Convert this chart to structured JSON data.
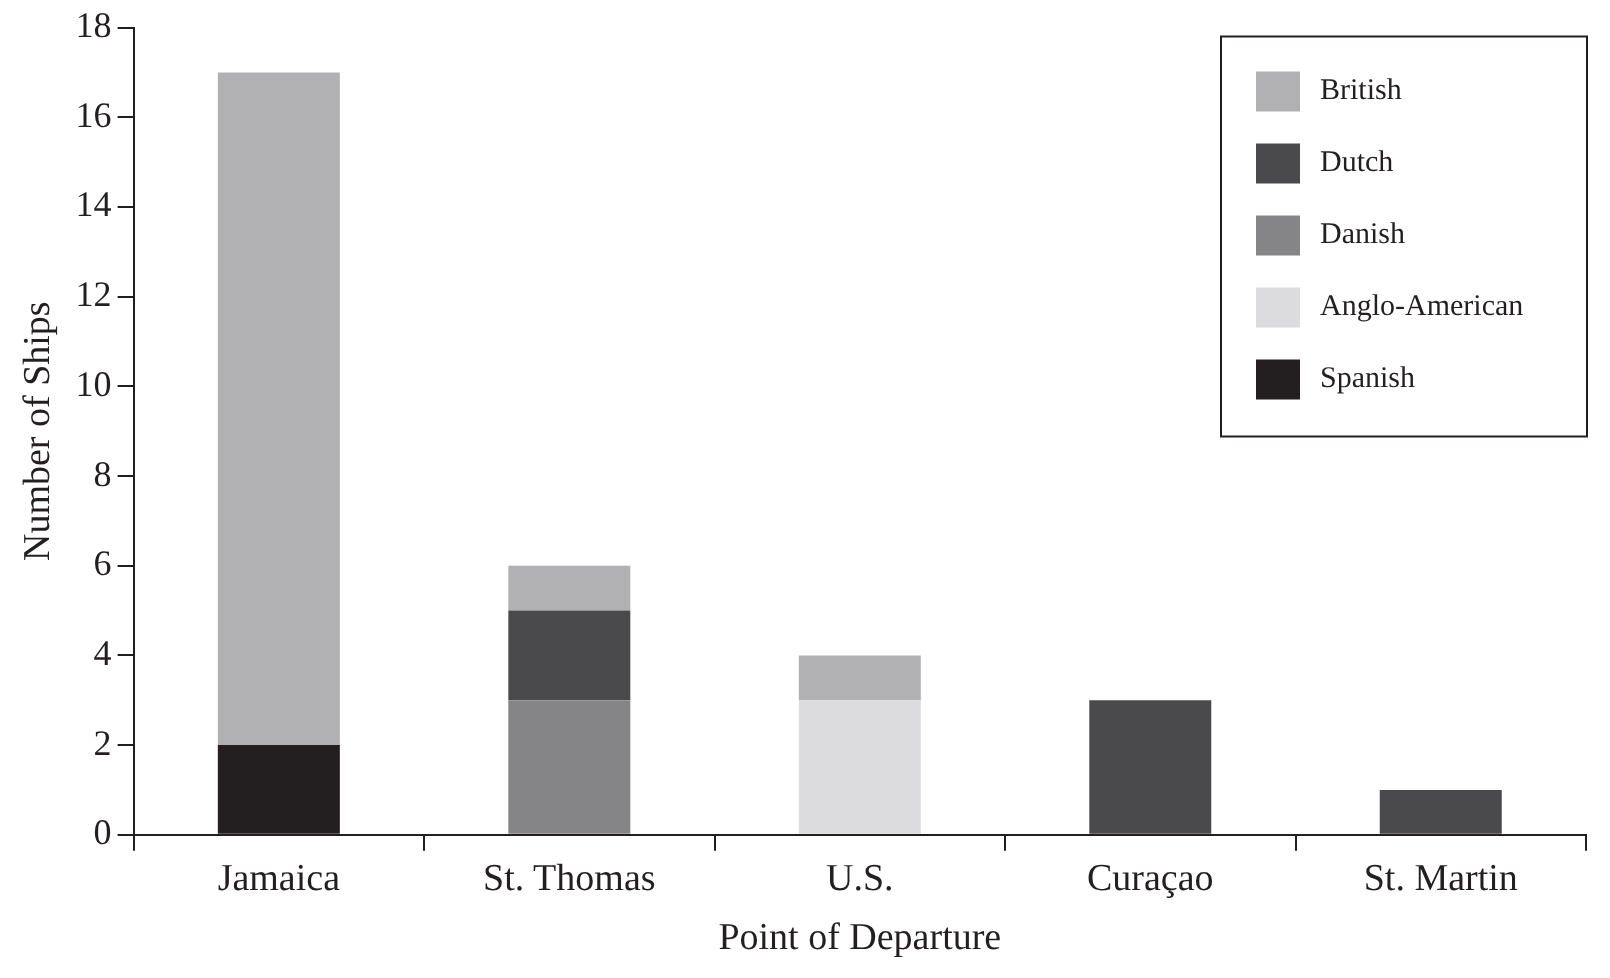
{
  "chart_data": {
    "type": "bar",
    "stacked": true,
    "xlabel": "Point of Departure",
    "ylabel": "Number of Ships",
    "categories": [
      "Jamaica",
      "St. Thomas",
      "U.S.",
      "Curaçao",
      "St. Martin"
    ],
    "series": [
      {
        "name": "Spanish",
        "color": "#231f20",
        "values": [
          2,
          0,
          0,
          0,
          0
        ]
      },
      {
        "name": "Anglo-American",
        "color": "#dcdcde",
        "values": [
          0,
          0,
          3,
          0,
          0
        ]
      },
      {
        "name": "Danish",
        "color": "#858587",
        "values": [
          0,
          3,
          0,
          0,
          0
        ]
      },
      {
        "name": "Dutch",
        "color": "#4a4a4c",
        "values": [
          0,
          2,
          0,
          3,
          1
        ]
      },
      {
        "name": "British",
        "color": "#b1b1b4",
        "values": [
          15,
          1,
          1,
          0,
          0
        ]
      }
    ],
    "ylim": [
      0,
      18
    ],
    "yticks": [
      0,
      2,
      4,
      6,
      8,
      10,
      12,
      14,
      16,
      18
    ],
    "grid": false,
    "legend": "top right"
  }
}
